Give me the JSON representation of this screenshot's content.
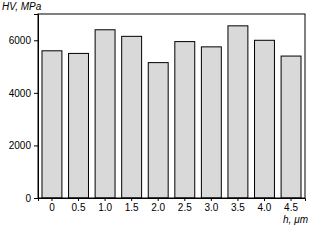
{
  "chart_data": {
    "type": "bar",
    "y_label": "HV, MPa",
    "x_label": "h, μm",
    "categories": [
      "0",
      "0.5",
      "1.0",
      "1.5",
      "2.0",
      "2.5",
      "3.0",
      "3.5",
      "4.0",
      "4.5"
    ],
    "values": [
      5600,
      5500,
      6400,
      6150,
      5150,
      5950,
      5750,
      6550,
      6000,
      5400
    ],
    "color": "#d9d9d9",
    "ylim": [
      0,
      7000
    ],
    "yticks": [
      0,
      2000,
      4000,
      6000
    ],
    "grid": false
  }
}
